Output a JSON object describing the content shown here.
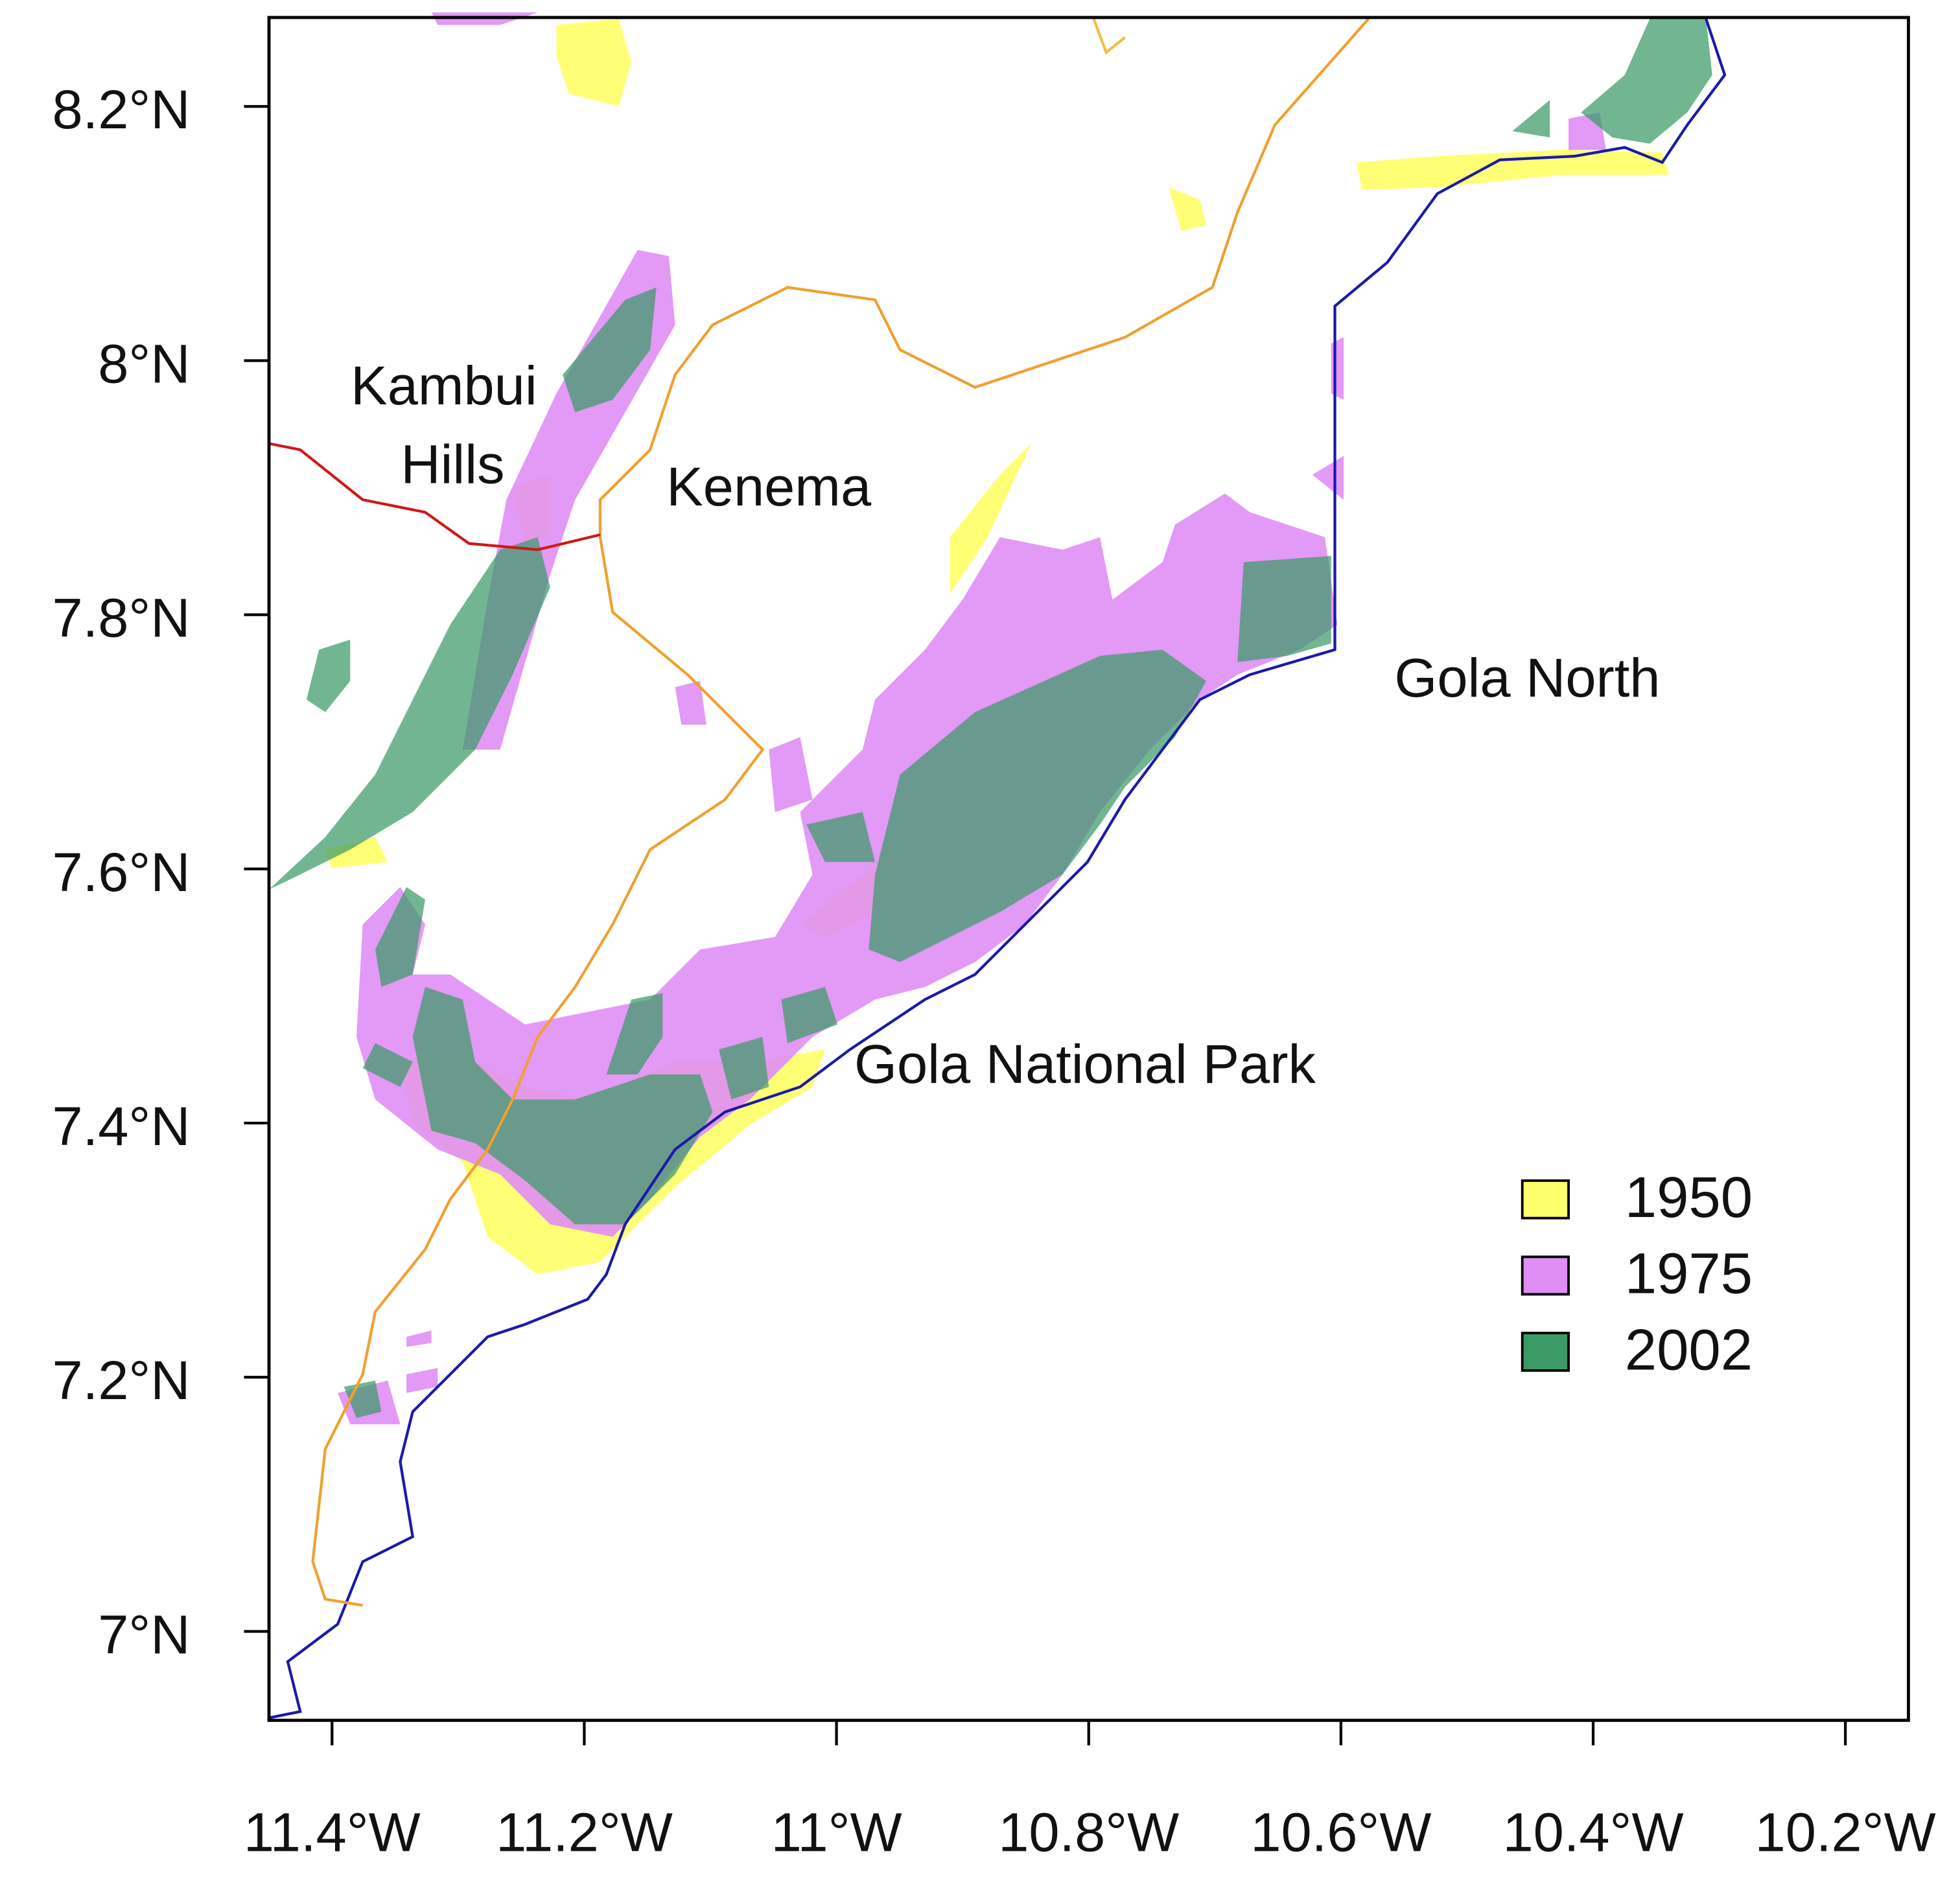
{
  "map": {
    "xlim": [
      -11.45,
      -10.15
    ],
    "ylim": [
      6.93,
      8.27
    ],
    "xticks": [
      {
        "value": -11.4,
        "label": "11.4°W"
      },
      {
        "value": -11.2,
        "label": "11.2°W"
      },
      {
        "value": -11.0,
        "label": "11°W"
      },
      {
        "value": -10.8,
        "label": "10.8°W"
      },
      {
        "value": -10.6,
        "label": "10.6°W"
      },
      {
        "value": -10.4,
        "label": "10.4°W"
      },
      {
        "value": -10.2,
        "label": "10.2°W"
      }
    ],
    "yticks": [
      {
        "value": 7.0,
        "label": "7°N"
      },
      {
        "value": 7.2,
        "label": "7.2°N"
      },
      {
        "value": 7.4,
        "label": "7.4°N"
      },
      {
        "value": 7.6,
        "label": "7.6°N"
      },
      {
        "value": 7.8,
        "label": "7.8°N"
      },
      {
        "value": 8.0,
        "label": "8°N"
      },
      {
        "value": 8.2,
        "label": "8.2°N"
      }
    ],
    "place_labels": [
      "Kambui",
      "Hills",
      "Kenema",
      "Gola North",
      "Gola National Park"
    ],
    "legend": [
      {
        "label": "1950",
        "color": "#ffff6e"
      },
      {
        "label": "1975",
        "color": "#e08ef5"
      },
      {
        "label": "2002",
        "color": "#3c9a66"
      }
    ]
  }
}
